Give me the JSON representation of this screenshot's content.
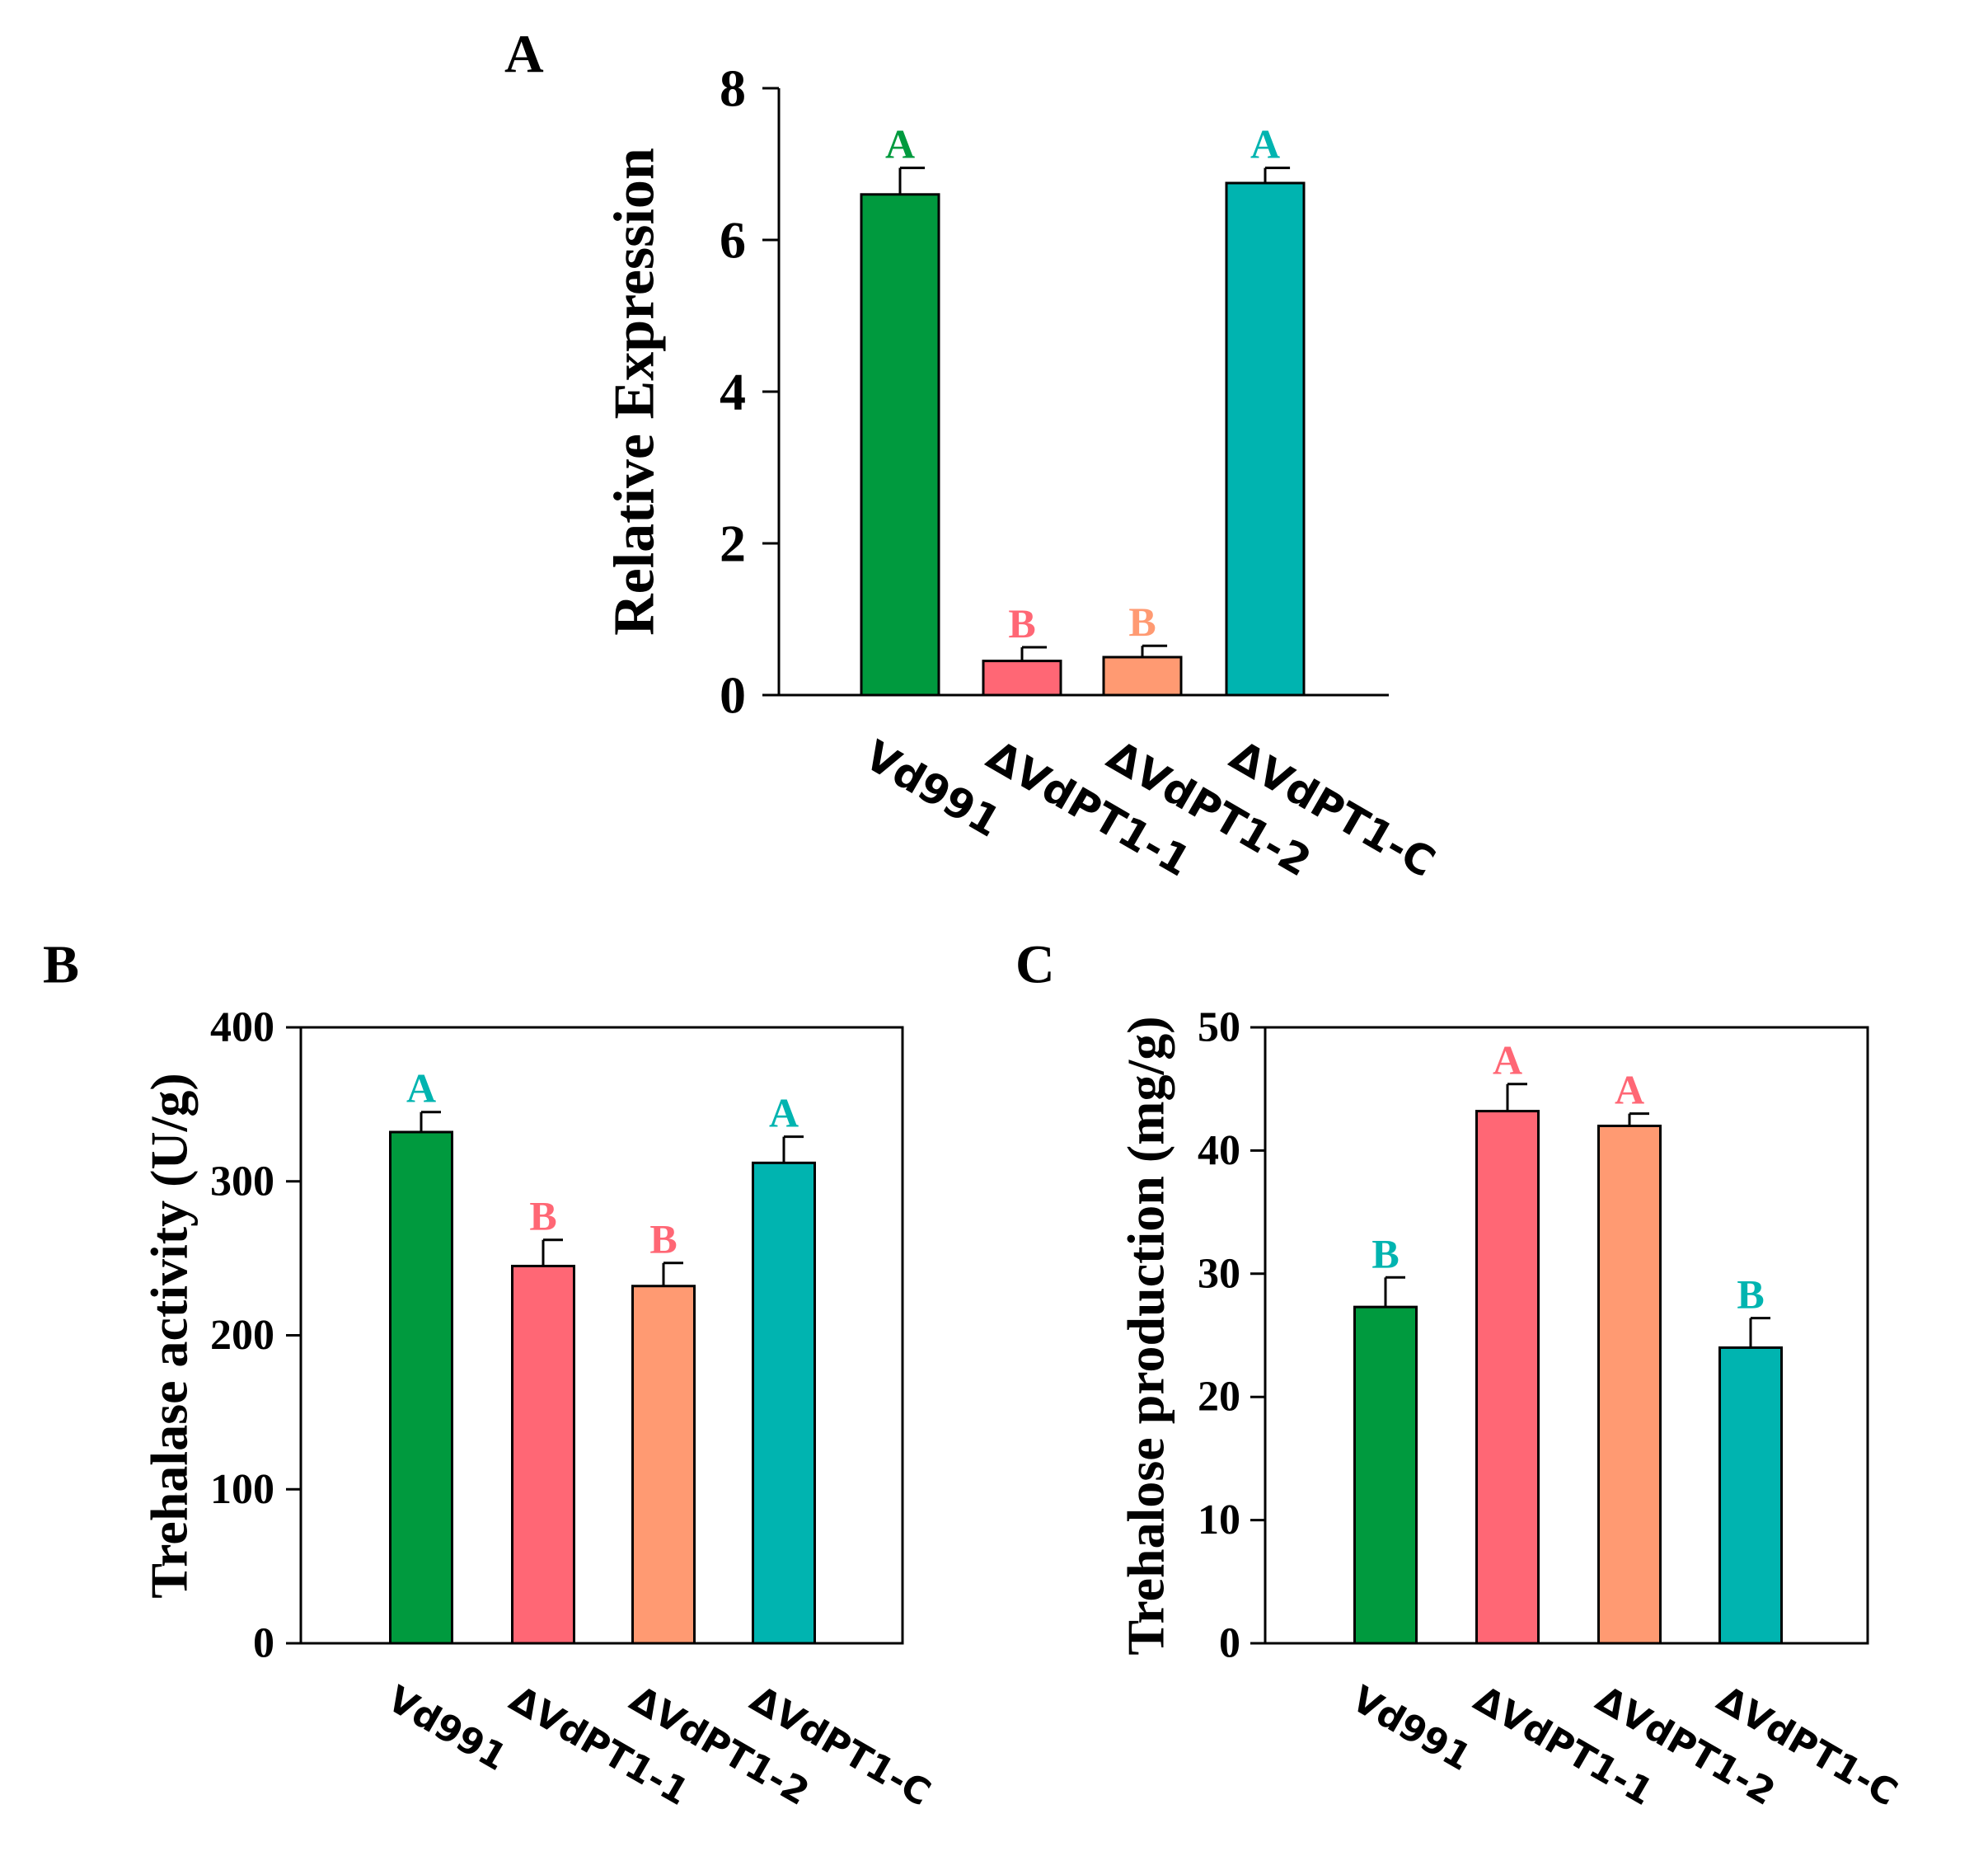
{
  "chart_data": [
    {
      "panel": "A",
      "type": "bar",
      "title": "",
      "xlabel": "",
      "ylabel": "Relative Expression",
      "ylim": [
        0,
        8
      ],
      "yticks": [
        0,
        2,
        4,
        6,
        8
      ],
      "frame": "axes-only",
      "categories": [
        "Vd991",
        "ΔVdPT1-1",
        "ΔVdPT1-2",
        "ΔVdPT1-C"
      ],
      "values": [
        6.6,
        0.45,
        0.5,
        6.75
      ],
      "errors": [
        0.35,
        0.18,
        0.15,
        0.2
      ],
      "significance": [
        "A",
        "B",
        "B",
        "A"
      ],
      "bar_colors": [
        "#009a3e",
        "#ff6775",
        "#ff9a72",
        "#00b4b0"
      ],
      "label_colors": [
        "#009a3e",
        "#ff6775",
        "#ff9a72",
        "#00b4b0"
      ]
    },
    {
      "panel": "B",
      "type": "bar",
      "title": "",
      "xlabel": "",
      "ylabel": "Trehalase activity (U/g)",
      "ylim": [
        0,
        400
      ],
      "yticks": [
        0,
        100,
        200,
        300,
        400
      ],
      "frame": "box",
      "categories": [
        "Vd991",
        "ΔVdPT1-1",
        "ΔVdPT1-2",
        "ΔVdPT1-C"
      ],
      "values": [
        332,
        245,
        232,
        312
      ],
      "errors": [
        13,
        17,
        15,
        17
      ],
      "significance": [
        "A",
        "B",
        "B",
        "A"
      ],
      "bar_colors": [
        "#009a3e",
        "#ff6775",
        "#ff9a72",
        "#00b4b0"
      ],
      "label_colors": [
        "#00b4b0",
        "#ff6775",
        "#ff6775",
        "#00b4b0"
      ]
    },
    {
      "panel": "C",
      "type": "bar",
      "title": "",
      "xlabel": "",
      "ylabel": "Trehalose production (mg/g)",
      "ylim": [
        0,
        50
      ],
      "yticks": [
        0,
        10,
        20,
        30,
        40,
        50
      ],
      "frame": "box",
      "categories": [
        "Vd991",
        "ΔVdPT1-1",
        "ΔVdPT1-2",
        "ΔVdPT1-C"
      ],
      "values": [
        27.3,
        43.2,
        42,
        24
      ],
      "errors": [
        2.4,
        2.2,
        1.0,
        2.4
      ],
      "significance": [
        "B",
        "A",
        "A",
        "B"
      ],
      "bar_colors": [
        "#009a3e",
        "#ff6775",
        "#ff9a72",
        "#00b4b0"
      ],
      "label_colors": [
        "#00b4b0",
        "#ff6775",
        "#ff6775",
        "#00b4b0"
      ]
    }
  ]
}
